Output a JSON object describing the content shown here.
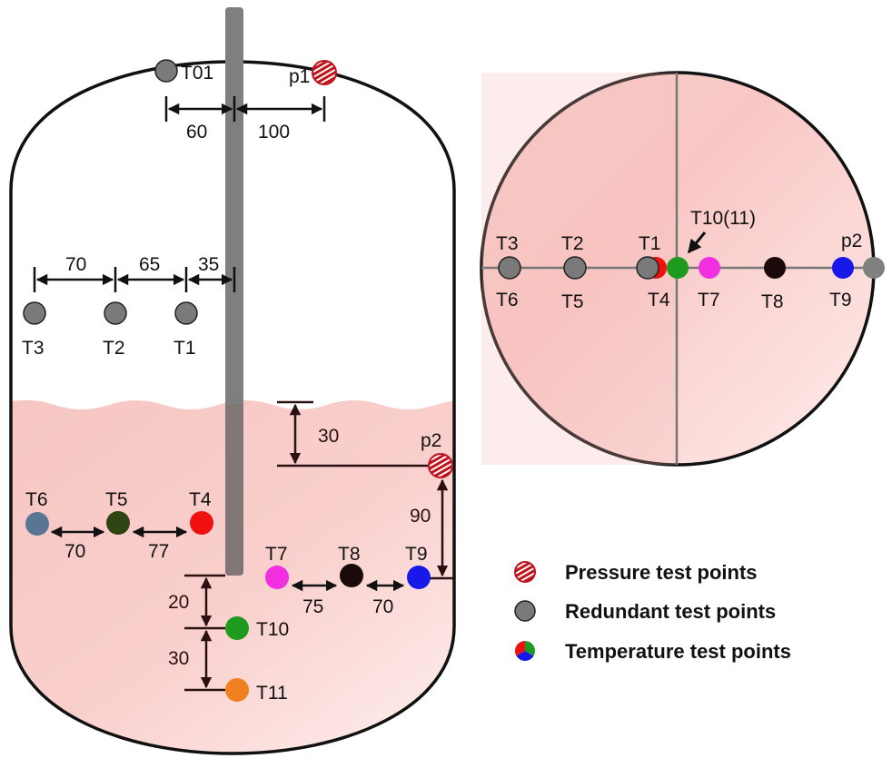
{
  "side_view": {
    "top": {
      "T01": "T01",
      "p1": "p1",
      "dims": [
        "60",
        "100"
      ]
    },
    "upper": {
      "labels": [
        "T3",
        "T2",
        "T1"
      ],
      "dims": [
        "70",
        "65",
        "35"
      ]
    },
    "liquid": {
      "row1_labels": [
        "T6",
        "T5",
        "T4"
      ],
      "row1_dims": [
        "70",
        "77"
      ],
      "row2_labels": [
        "T7",
        "T8",
        "T9"
      ],
      "row2_dims": [
        "75",
        "70"
      ],
      "p2": "p2",
      "p2_depth": "30",
      "p2_to_T9": "90",
      "vertical_labels": [
        "T10",
        "T11"
      ],
      "vertical_dims": [
        "20",
        "30"
      ]
    }
  },
  "top_view": {
    "upper_labels": [
      "T3",
      "T2",
      "T1",
      "p2"
    ],
    "lower_labels": [
      "T6",
      "T5",
      "T4",
      "T7",
      "T8",
      "T9"
    ],
    "callout": "T10(11)"
  },
  "legend": [
    {
      "label": "Pressure test points",
      "icon": "hatched-red-circle"
    },
    {
      "label": "Redundant test points",
      "icon": "gray-circle"
    },
    {
      "label": "Temperature test points",
      "icon": "tricolor-circle"
    }
  ],
  "colors": {
    "liquid": "#f6c6c2",
    "rod": "#7f7f7f",
    "redundant": "#7a7a7a",
    "pressure": "#c0141c",
    "T4": "#f01010",
    "T5": "#2e4513",
    "T6": "#5a7594",
    "T7": "#f030e0",
    "T8": "#1a0a0a",
    "T9": "#1818e8",
    "T10": "#1e9a1e",
    "T11": "#f08020"
  }
}
